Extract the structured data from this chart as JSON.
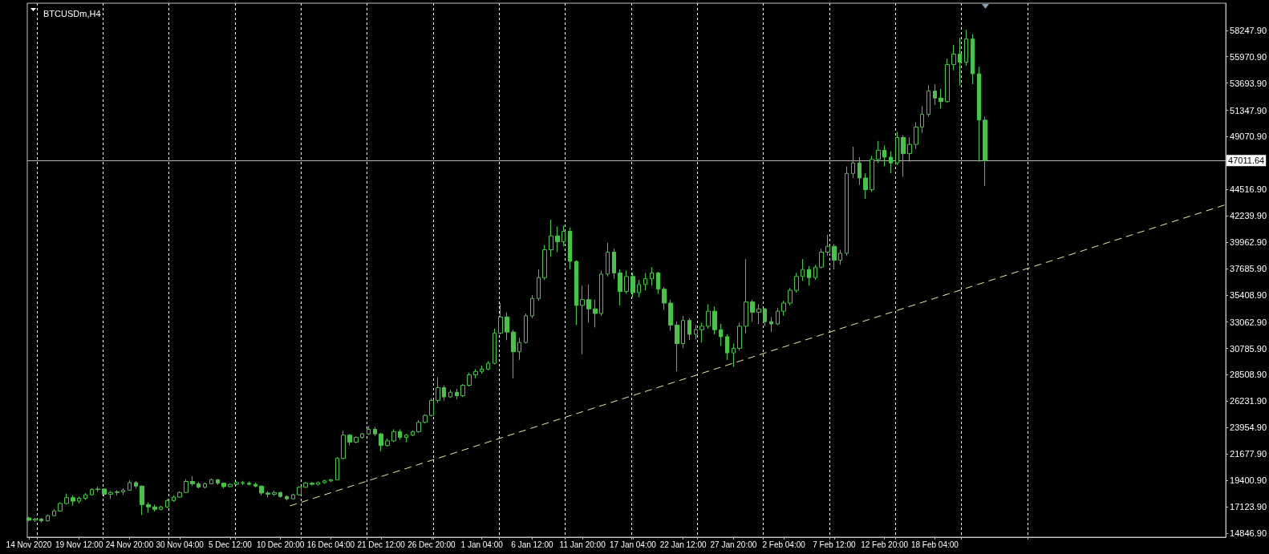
{
  "chart_data": {
    "type": "candlestick",
    "title": "BTCUSDm,H4",
    "color": "#44c544",
    "x": [
      "2020-11-14T04:00",
      "2020-11-14T20:00",
      "2020-11-15T12:00",
      "2020-11-16T04:00",
      "2020-11-16T20:00",
      "2020-11-17T12:00",
      "2020-11-18T04:00",
      "2020-11-18T20:00",
      "2020-11-19T12:00",
      "2020-11-20T04:00",
      "2020-11-20T20:00",
      "2020-11-21T12:00",
      "2020-11-22T04:00",
      "2020-11-22T20:00",
      "2020-11-23T12:00",
      "2020-11-24T04:00",
      "2020-11-24T20:00",
      "2020-11-25T12:00",
      "2020-11-26T04:00",
      "2020-11-26T20:00",
      "2020-11-27T12:00",
      "2020-11-28T04:00",
      "2020-11-28T20:00",
      "2020-11-29T12:00",
      "2020-11-30T04:00",
      "2020-11-30T20:00",
      "2020-12-01T12:00",
      "2020-12-02T04:00",
      "2020-12-02T20:00",
      "2020-12-03T12:00",
      "2020-12-04T04:00",
      "2020-12-04T20:00",
      "2020-12-05T12:00",
      "2020-12-06T04:00",
      "2020-12-06T20:00",
      "2020-12-07T12:00",
      "2020-12-08T04:00",
      "2020-12-08T20:00",
      "2020-12-09T12:00",
      "2020-12-10T04:00",
      "2020-12-10T20:00",
      "2020-12-11T12:00",
      "2020-12-12T04:00",
      "2020-12-12T20:00",
      "2020-12-13T12:00",
      "2020-12-14T04:00",
      "2020-12-14T20:00",
      "2020-12-15T12:00",
      "2020-12-16T04:00",
      "2020-12-16T20:00",
      "2020-12-17T12:00",
      "2020-12-18T04:00",
      "2020-12-18T20:00",
      "2020-12-19T12:00",
      "2020-12-20T04:00",
      "2020-12-20T20:00",
      "2020-12-21T12:00",
      "2020-12-22T04:00",
      "2020-12-22T20:00",
      "2020-12-23T12:00",
      "2020-12-24T04:00",
      "2020-12-24T20:00",
      "2020-12-25T12:00",
      "2020-12-26T04:00",
      "2020-12-26T20:00",
      "2020-12-27T12:00",
      "2020-12-28T04:00",
      "2020-12-28T20:00",
      "2020-12-29T12:00",
      "2020-12-30T04:00",
      "2020-12-30T20:00",
      "2020-12-31T12:00",
      "2021-01-01T04:00",
      "2021-01-01T20:00",
      "2021-01-02T12:00",
      "2021-01-03T04:00",
      "2021-01-03T20:00",
      "2021-01-04T12:00",
      "2021-01-05T04:00",
      "2021-01-05T20:00",
      "2021-01-06T12:00",
      "2021-01-07T04:00",
      "2021-01-07T20:00",
      "2021-01-08T12:00",
      "2021-01-09T04:00",
      "2021-01-09T20:00",
      "2021-01-10T12:00",
      "2021-01-11T04:00",
      "2021-01-11T20:00",
      "2021-01-12T12:00",
      "2021-01-13T04:00",
      "2021-01-13T20:00",
      "2021-01-14T12:00",
      "2021-01-15T04:00",
      "2021-01-15T20:00",
      "2021-01-16T12:00",
      "2021-01-17T04:00",
      "2021-01-17T20:00",
      "2021-01-18T12:00",
      "2021-01-19T04:00",
      "2021-01-19T20:00",
      "2021-01-20T12:00",
      "2021-01-21T04:00",
      "2021-01-21T20:00",
      "2021-01-22T12:00",
      "2021-01-23T04:00",
      "2021-01-23T20:00",
      "2021-01-24T12:00",
      "2021-01-25T04:00",
      "2021-01-25T20:00",
      "2021-01-26T12:00",
      "2021-01-27T04:00",
      "2021-01-27T20:00",
      "2021-01-28T12:00",
      "2021-01-29T04:00",
      "2021-01-29T20:00",
      "2021-01-30T12:00",
      "2021-01-31T04:00",
      "2021-01-31T20:00",
      "2021-02-01T12:00",
      "2021-02-02T04:00",
      "2021-02-02T20:00",
      "2021-02-03T12:00",
      "2021-02-04T04:00",
      "2021-02-04T20:00",
      "2021-02-05T12:00",
      "2021-02-06T04:00",
      "2021-02-06T20:00",
      "2021-02-07T12:00",
      "2021-02-08T04:00",
      "2021-02-08T20:00",
      "2021-02-09T12:00",
      "2021-02-10T04:00",
      "2021-02-10T20:00",
      "2021-02-11T12:00",
      "2021-02-12T04:00",
      "2021-02-12T20:00",
      "2021-02-13T12:00",
      "2021-02-14T04:00",
      "2021-02-14T20:00",
      "2021-02-15T12:00",
      "2021-02-16T04:00",
      "2021-02-16T20:00",
      "2021-02-17T12:00",
      "2021-02-18T04:00",
      "2021-02-18T20:00",
      "2021-02-19T12:00",
      "2021-02-20T04:00",
      "2021-02-20T20:00",
      "2021-02-21T12:00",
      "2021-02-22T04:00",
      "2021-02-22T20:00",
      "2021-02-23T12:00"
    ],
    "ohlc": [
      [
        16150,
        16250,
        15850,
        15950
      ],
      [
        15950,
        16150,
        15800,
        16050
      ],
      [
        16050,
        16150,
        15750,
        15900
      ],
      [
        15900,
        16450,
        15850,
        16350
      ],
      [
        16350,
        16900,
        16300,
        16750
      ],
      [
        16750,
        17500,
        16700,
        17400
      ],
      [
        17400,
        18250,
        17300,
        17900
      ],
      [
        17900,
        18100,
        17200,
        17600
      ],
      [
        17600,
        18000,
        17400,
        17850
      ],
      [
        17850,
        18300,
        17700,
        18150
      ],
      [
        18150,
        18700,
        18100,
        18600
      ],
      [
        18600,
        18850,
        18400,
        18650
      ],
      [
        18650,
        18700,
        18000,
        18200
      ],
      [
        18200,
        18500,
        17800,
        18350
      ],
      [
        18350,
        18550,
        18100,
        18400
      ],
      [
        18400,
        18700,
        18150,
        18550
      ],
      [
        18550,
        19400,
        18500,
        19200
      ],
      [
        19200,
        19350,
        18700,
        18900
      ],
      [
        18900,
        18950,
        16400,
        17300
      ],
      [
        17300,
        17500,
        16600,
        17100
      ],
      [
        17100,
        17300,
        16700,
        16900
      ],
      [
        16900,
        17200,
        16800,
        17100
      ],
      [
        17100,
        17800,
        17000,
        17650
      ],
      [
        17650,
        18100,
        17550,
        17950
      ],
      [
        17950,
        18450,
        17900,
        18350
      ],
      [
        18350,
        19500,
        18300,
        19300
      ],
      [
        19300,
        19750,
        18900,
        19100
      ],
      [
        19100,
        19250,
        18700,
        18800
      ],
      [
        18800,
        19200,
        18700,
        19100
      ],
      [
        19100,
        19550,
        19050,
        19450
      ],
      [
        19450,
        19500,
        19000,
        19150
      ],
      [
        19150,
        19200,
        18700,
        18850
      ],
      [
        18850,
        19150,
        18800,
        19050
      ],
      [
        19050,
        19300,
        18950,
        19200
      ],
      [
        19200,
        19350,
        19000,
        19150
      ],
      [
        19150,
        19300,
        18950,
        19050
      ],
      [
        19050,
        19200,
        18800,
        18900
      ],
      [
        18900,
        18950,
        18100,
        18300
      ],
      [
        18300,
        18450,
        17900,
        18200
      ],
      [
        18200,
        18500,
        18050,
        18350
      ],
      [
        18350,
        18400,
        17900,
        18000
      ],
      [
        18000,
        18100,
        17650,
        17800
      ],
      [
        17800,
        18250,
        17750,
        18150
      ],
      [
        18150,
        18900,
        18100,
        18800
      ],
      [
        18800,
        19250,
        18750,
        19150
      ],
      [
        19150,
        19250,
        18950,
        19050
      ],
      [
        19050,
        19300,
        18950,
        19200
      ],
      [
        19200,
        19450,
        19100,
        19350
      ],
      [
        19350,
        19500,
        19250,
        19450
      ],
      [
        19450,
        21400,
        19400,
        21300
      ],
      [
        21300,
        23700,
        21200,
        23300
      ],
      [
        23300,
        23400,
        22400,
        22700
      ],
      [
        22700,
        23200,
        22600,
        23100
      ],
      [
        23100,
        23500,
        23000,
        23400
      ],
      [
        23400,
        24100,
        23300,
        23800
      ],
      [
        23800,
        24000,
        23200,
        23400
      ],
      [
        23400,
        23500,
        21900,
        22400
      ],
      [
        22400,
        23000,
        22300,
        22800
      ],
      [
        22800,
        23800,
        22700,
        23600
      ],
      [
        23600,
        23800,
        22900,
        23100
      ],
      [
        23100,
        23400,
        22700,
        23300
      ],
      [
        23300,
        23700,
        23200,
        23600
      ],
      [
        23600,
        24600,
        23500,
        24400
      ],
      [
        24400,
        25100,
        24300,
        25000
      ],
      [
        25000,
        26500,
        24900,
        26300
      ],
      [
        26300,
        28300,
        26100,
        27400
      ],
      [
        27400,
        27600,
        26300,
        26600
      ],
      [
        26600,
        27200,
        26500,
        27000
      ],
      [
        27000,
        27300,
        26400,
        26700
      ],
      [
        26700,
        27700,
        26600,
        27600
      ],
      [
        27600,
        28700,
        27500,
        28500
      ],
      [
        28500,
        29000,
        28200,
        28800
      ],
      [
        28800,
        29300,
        28600,
        29000
      ],
      [
        29000,
        29700,
        28900,
        29500
      ],
      [
        29500,
        32500,
        29400,
        32100
      ],
      [
        32100,
        34700,
        32000,
        33500
      ],
      [
        33500,
        33900,
        31500,
        32200
      ],
      [
        32200,
        32400,
        28200,
        30500
      ],
      [
        30500,
        31700,
        29800,
        31300
      ],
      [
        31300,
        33800,
        31200,
        33600
      ],
      [
        33600,
        35400,
        33400,
        35100
      ],
      [
        35100,
        37600,
        34900,
        36900
      ],
      [
        36900,
        39700,
        36700,
        39300
      ],
      [
        39300,
        41900,
        38700,
        40500
      ],
      [
        40500,
        41300,
        39100,
        40000
      ],
      [
        40000,
        41400,
        39600,
        40900
      ],
      [
        40900,
        41200,
        37600,
        38300
      ],
      [
        38300,
        38400,
        32800,
        34500
      ],
      [
        34500,
        36200,
        30300,
        35000
      ],
      [
        35000,
        36300,
        33000,
        34200
      ],
      [
        34200,
        35000,
        32600,
        33800
      ],
      [
        33800,
        37500,
        33600,
        37200
      ],
      [
        37200,
        39900,
        37000,
        39100
      ],
      [
        39100,
        39400,
        36800,
        37300
      ],
      [
        37300,
        37600,
        34500,
        35700
      ],
      [
        35700,
        37500,
        35500,
        37000
      ],
      [
        37000,
        37300,
        35200,
        35600
      ],
      [
        35600,
        36700,
        35200,
        36300
      ],
      [
        36300,
        37300,
        35800,
        36800
      ],
      [
        36800,
        37800,
        36200,
        37300
      ],
      [
        37300,
        37400,
        35500,
        35900
      ],
      [
        35900,
        36100,
        34100,
        34700
      ],
      [
        34700,
        35000,
        32300,
        32800
      ],
      [
        32800,
        33100,
        28800,
        31200
      ],
      [
        31200,
        33600,
        30800,
        33200
      ],
      [
        33200,
        33400,
        31500,
        32000
      ],
      [
        32000,
        32800,
        31600,
        32400
      ],
      [
        32400,
        33000,
        31300,
        32700
      ],
      [
        32700,
        34600,
        32500,
        34000
      ],
      [
        34000,
        34400,
        32000,
        32400
      ],
      [
        32400,
        32900,
        31000,
        31800
      ],
      [
        31800,
        32000,
        29800,
        30400
      ],
      [
        30400,
        31200,
        29200,
        30800
      ],
      [
        30800,
        33000,
        30600,
        32700
      ],
      [
        32700,
        38500,
        32100,
        34800
      ],
      [
        34800,
        35000,
        33100,
        33900
      ],
      [
        33900,
        34600,
        32900,
        34200
      ],
      [
        34200,
        34300,
        32700,
        33100
      ],
      [
        33100,
        33500,
        32200,
        32900
      ],
      [
        32900,
        34300,
        32800,
        34000
      ],
      [
        34000,
        34900,
        33600,
        34700
      ],
      [
        34700,
        36000,
        34500,
        35800
      ],
      [
        35800,
        37300,
        35600,
        37000
      ],
      [
        37000,
        38500,
        36600,
        37600
      ],
      [
        37600,
        37900,
        36200,
        36900
      ],
      [
        36900,
        38000,
        36700,
        37800
      ],
      [
        37800,
        39400,
        37700,
        39100
      ],
      [
        39100,
        40600,
        38800,
        39600
      ],
      [
        39600,
        39800,
        37600,
        38400
      ],
      [
        38400,
        39300,
        38000,
        39000
      ],
      [
        39000,
        46500,
        38800,
        45900
      ],
      [
        45900,
        48200,
        45500,
        46800
      ],
      [
        46800,
        47300,
        44900,
        45500
      ],
      [
        45500,
        45900,
        43700,
        44500
      ],
      [
        44500,
        47400,
        44300,
        47100
      ],
      [
        47100,
        48700,
        46800,
        47900
      ],
      [
        47900,
        48300,
        46500,
        47300
      ],
      [
        47300,
        47800,
        45900,
        46800
      ],
      [
        46800,
        49500,
        46600,
        49000
      ],
      [
        49000,
        49200,
        45600,
        47600
      ],
      [
        47600,
        49000,
        46900,
        48400
      ],
      [
        48400,
        50300,
        48000,
        49900
      ],
      [
        49900,
        51700,
        49400,
        51000
      ],
      [
        51000,
        53500,
        50800,
        53000
      ],
      [
        53000,
        53600,
        51800,
        52400
      ],
      [
        52400,
        53200,
        51500,
        52100
      ],
      [
        52100,
        55800,
        52000,
        55300
      ],
      [
        55300,
        57000,
        54800,
        56200
      ],
      [
        56200,
        57600,
        53500,
        55500
      ],
      [
        55500,
        58300,
        55200,
        57500
      ],
      [
        57500,
        57900,
        53600,
        54500
      ],
      [
        54500,
        55100,
        46900,
        50500
      ],
      [
        50500,
        50800,
        44800,
        47000
      ]
    ],
    "series": [
      {
        "type": "line",
        "x": [
          "2020-12-11T20:00",
          "2021-03-21T00:00"
        ],
        "values": [
          17190,
          43200
        ],
        "color": "#eee8aa",
        "line_style": "dashed",
        "marker": "none"
      }
    ],
    "xlim": [
      "2020-11-14T00:00",
      "2021-03-21T00:00"
    ],
    "xticks": [
      {
        "value": "2020-11-14T04:00",
        "label": "14 Nov 2020"
      },
      {
        "value": "2020-11-15T00:00",
        "label": null
      },
      {
        "value": "2020-11-19T12:00",
        "label": "19 Nov 12:00"
      },
      {
        "value": "2020-11-22T00:00",
        "label": null
      },
      {
        "value": "2020-11-24T20:00",
        "label": "24 Nov 20:00"
      },
      {
        "value": "2020-11-29T00:00",
        "label": null
      },
      {
        "value": "2020-11-30T04:00",
        "label": "30 Nov 04:00"
      },
      {
        "value": "2020-12-05T12:00",
        "label": "5 Dec 12:00"
      },
      {
        "value": "2020-12-06T00:00",
        "label": null
      },
      {
        "value": "2020-12-10T20:00",
        "label": "10 Dec 20:00"
      },
      {
        "value": "2020-12-13T00:00",
        "label": null
      },
      {
        "value": "2020-12-16T04:00",
        "label": "16 Dec 04:00"
      },
      {
        "value": "2020-12-20T00:00",
        "label": null
      },
      {
        "value": "2020-12-21T12:00",
        "label": "21 Dec 12:00"
      },
      {
        "value": "2020-12-26T20:00",
        "label": "26 Dec 20:00"
      },
      {
        "value": "2020-12-27T00:00",
        "label": null
      },
      {
        "value": "2021-01-01T04:00",
        "label": "1 Jan 04:00"
      },
      {
        "value": "2021-01-03T00:00",
        "label": null
      },
      {
        "value": "2021-01-06T12:00",
        "label": "6 Jan 12:00"
      },
      {
        "value": "2021-01-10T00:00",
        "label": null
      },
      {
        "value": "2021-01-11T20:00",
        "label": "11 Jan 20:00"
      },
      {
        "value": "2021-01-17T00:00",
        "label": null
      },
      {
        "value": "2021-01-17T04:00",
        "label": "17 Jan 04:00"
      },
      {
        "value": "2021-01-22T12:00",
        "label": "22 Jan 12:00"
      },
      {
        "value": "2021-01-24T00:00",
        "label": null
      },
      {
        "value": "2021-01-27T20:00",
        "label": "27 Jan 20:00"
      },
      {
        "value": "2021-01-31T00:00",
        "label": null
      },
      {
        "value": "2021-02-02T04:00",
        "label": "2 Feb 04:00"
      },
      {
        "value": "2021-02-07T00:00",
        "label": null
      },
      {
        "value": "2021-02-07T12:00",
        "label": "7 Feb 12:00"
      },
      {
        "value": "2021-02-12T20:00",
        "label": "12 Feb 20:00"
      },
      {
        "value": "2021-02-14T00:00",
        "label": null
      },
      {
        "value": "2021-02-18T04:00",
        "label": "18 Feb 04:00"
      },
      {
        "value": "2021-02-21T00:00",
        "label": null
      },
      {
        "value": "2021-02-28T00:00",
        "label": null
      }
    ],
    "ylim": [
      14490,
      60590
    ],
    "yticks": [
      {
        "value": 14846.9,
        "label": "14846.90"
      },
      {
        "value": 17123.9,
        "label": "17123.90"
      },
      {
        "value": 19400.9,
        "label": "19400.90"
      },
      {
        "value": 21677.9,
        "label": "21677.90"
      },
      {
        "value": 23954.9,
        "label": "23954.90"
      },
      {
        "value": 26231.9,
        "label": "26231.90"
      },
      {
        "value": 28508.9,
        "label": "28508.90"
      },
      {
        "value": 30785.9,
        "label": "30785.90"
      },
      {
        "value": 33062.9,
        "label": "33062.90"
      },
      {
        "value": 35408.9,
        "label": "35408.90"
      },
      {
        "value": 37685.9,
        "label": "37685.90"
      },
      {
        "value": 39962.9,
        "label": "39962.90"
      },
      {
        "value": 42239.9,
        "label": "42239.90"
      },
      {
        "value": 44516.9,
        "label": "44516.90"
      },
      {
        "value": 49070.9,
        "label": "49070.90"
      },
      {
        "value": 51347.9,
        "label": "51347.90"
      },
      {
        "value": 53693.9,
        "label": "53693.90"
      },
      {
        "value": 55970.9,
        "label": "55970.90"
      },
      {
        "value": 58247.9,
        "label": "58247.90"
      }
    ],
    "grid": "x",
    "ref_lines": [
      {
        "axis": "y",
        "value": 47011.64,
        "label": "47011.64",
        "color": "#b4b4b4"
      }
    ]
  }
}
